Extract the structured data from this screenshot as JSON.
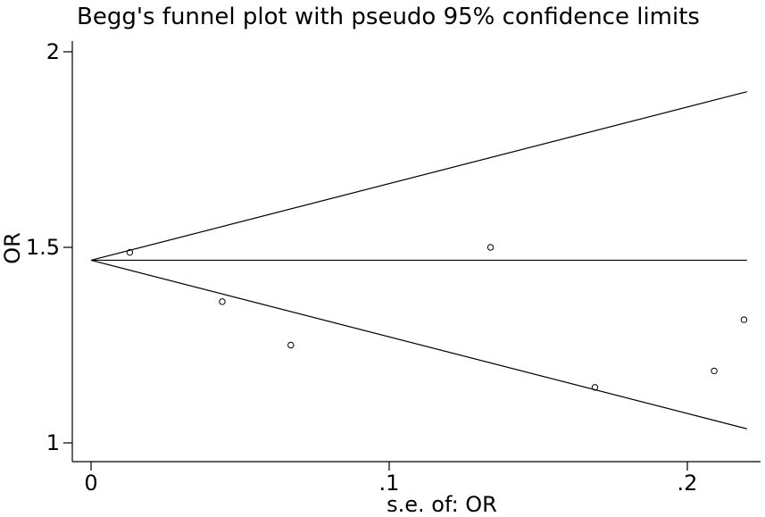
{
  "chart_data": {
    "type": "scatter",
    "title": "Begg's funnel plot with pseudo 95% confidence limits",
    "xlabel": "s.e. of: OR",
    "ylabel": "OR",
    "xlim": [
      0,
      0.22
    ],
    "ylim": [
      1,
      2
    ],
    "x_ticks": [
      {
        "value": 0,
        "label": "0"
      },
      {
        "value": 0.1,
        "label": ".1"
      },
      {
        "value": 0.2,
        "label": ".2"
      }
    ],
    "y_ticks": [
      {
        "value": 1,
        "label": "1"
      },
      {
        "value": 1.5,
        "label": "1.5"
      },
      {
        "value": 2,
        "label": "2"
      }
    ],
    "grid": false,
    "pooled_estimate": 1.467,
    "confidence_limits": {
      "x": [
        0,
        0.22
      ],
      "upper": [
        1.467,
        1.898
      ],
      "lower": [
        1.467,
        1.036
      ]
    },
    "points": [
      {
        "x": 0.013,
        "y": 1.487
      },
      {
        "x": 0.044,
        "y": 1.361
      },
      {
        "x": 0.067,
        "y": 1.25
      },
      {
        "x": 0.134,
        "y": 1.5
      },
      {
        "x": 0.169,
        "y": 1.142
      },
      {
        "x": 0.209,
        "y": 1.184
      },
      {
        "x": 0.219,
        "y": 1.315
      }
    ]
  }
}
